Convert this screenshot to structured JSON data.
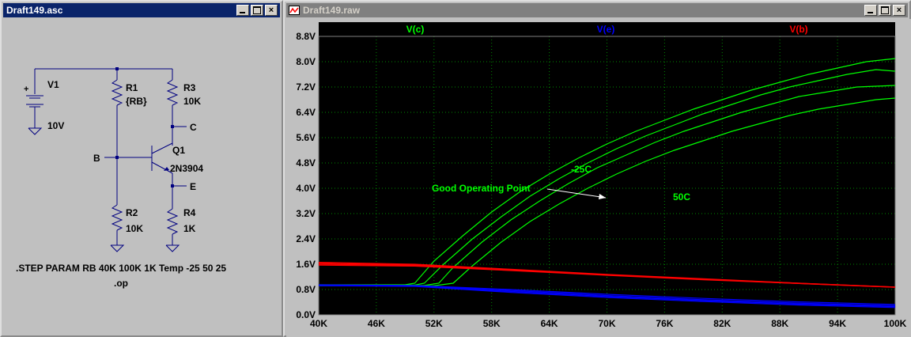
{
  "schematic_window": {
    "title": "Draft149.asc",
    "components": {
      "v1": {
        "name": "V1",
        "value": "10V"
      },
      "r1": {
        "name": "R1",
        "value": "{RB}"
      },
      "r3": {
        "name": "R3",
        "value": "10K"
      },
      "r2": {
        "name": "R2",
        "value": "10K"
      },
      "r4": {
        "name": "R4",
        "value": "1K"
      },
      "q1": {
        "name": "Q1",
        "value": "2N3904"
      },
      "plus_sign": "+"
    },
    "net_labels": {
      "b": "B",
      "c": "C",
      "e": "E"
    },
    "directives": {
      "step": ".STEP PARAM RB 40K 100K 1K Temp -25 50 25",
      "op": ".op"
    }
  },
  "waveform_window": {
    "title": "Draft149.raw"
  },
  "colors": {
    "vc": "#00ff00",
    "ve": "#0000ff",
    "vb": "#ff0000",
    "grid": "#008800",
    "axis_text": "#000000",
    "plot_bg": "#000000"
  },
  "chart_data": {
    "type": "line",
    "x_unit": "K",
    "xlim": [
      40,
      100
    ],
    "ylim": [
      0,
      8.8
    ],
    "x_ticks": [
      "40K",
      "46K",
      "52K",
      "58K",
      "64K",
      "70K",
      "76K",
      "82K",
      "88K",
      "94K",
      "100K"
    ],
    "y_ticks": [
      "0.0V",
      "0.8V",
      "1.6V",
      "2.4V",
      "3.2V",
      "4.0V",
      "4.8V",
      "5.6V",
      "6.4V",
      "7.2V",
      "8.0V",
      "8.8V"
    ],
    "grid": true,
    "legend_entries": [
      "V(c)",
      "V(e)",
      "V(b)"
    ],
    "annotations": {
      "cold": "-25C",
      "hot": "50C",
      "note": "Good Operating Point"
    },
    "series": [
      {
        "name": "V(c)",
        "color": "#00ff00",
        "x": [
          40,
          45,
          49,
          50,
          52,
          55,
          58,
          61,
          64,
          67,
          70,
          73,
          76,
          79,
          82,
          85,
          88,
          91,
          94,
          97,
          100
        ],
        "values": [
          0.95,
          0.95,
          0.95,
          1.0,
          1.7,
          2.5,
          3.25,
          3.9,
          4.45,
          4.95,
          5.4,
          5.8,
          6.15,
          6.5,
          6.8,
          7.1,
          7.35,
          7.6,
          7.8,
          8.0,
          8.1
        ]
      },
      {
        "name": "V(c)",
        "color": "#00ff00",
        "x": [
          40,
          45,
          50,
          51,
          53,
          56,
          59,
          62,
          65,
          68,
          71,
          74,
          77,
          80,
          83,
          86,
          89,
          92,
          95,
          98,
          100
        ],
        "values": [
          0.94,
          0.94,
          0.94,
          1.0,
          1.6,
          2.4,
          3.1,
          3.75,
          4.3,
          4.8,
          5.25,
          5.65,
          6.0,
          6.35,
          6.65,
          6.95,
          7.2,
          7.4,
          7.6,
          7.75,
          7.7
        ]
      },
      {
        "name": "V(c)",
        "color": "#00ff00",
        "x": [
          40,
          45,
          51,
          52.5,
          54,
          57,
          60,
          63,
          66,
          69,
          72,
          75,
          78,
          81,
          84,
          87,
          90,
          93,
          96,
          100
        ],
        "values": [
          0.93,
          0.93,
          0.93,
          1.0,
          1.5,
          2.3,
          3.0,
          3.6,
          4.15,
          4.65,
          5.05,
          5.45,
          5.8,
          6.1,
          6.4,
          6.65,
          6.9,
          7.05,
          7.2,
          7.25
        ]
      },
      {
        "name": "V(c)",
        "color": "#00ff00",
        "x": [
          40,
          45,
          52,
          54,
          56,
          59,
          62,
          65,
          68,
          71,
          74,
          77,
          80,
          83,
          86,
          89,
          92,
          95,
          98,
          100
        ],
        "values": [
          0.92,
          0.92,
          0.92,
          1.0,
          1.55,
          2.3,
          2.95,
          3.5,
          4.0,
          4.45,
          4.85,
          5.2,
          5.5,
          5.8,
          6.05,
          6.3,
          6.5,
          6.65,
          6.8,
          6.85
        ]
      },
      {
        "name": "V(e)",
        "color": "#0000ff",
        "x": [
          40,
          50,
          60,
          70,
          80,
          90,
          100
        ],
        "values": [
          0.95,
          0.93,
          0.8,
          0.65,
          0.52,
          0.41,
          0.33
        ]
      },
      {
        "name": "V(e)",
        "color": "#0000ff",
        "x": [
          40,
          50,
          60,
          70,
          80,
          90,
          100
        ],
        "values": [
          0.94,
          0.92,
          0.77,
          0.61,
          0.48,
          0.37,
          0.29
        ]
      },
      {
        "name": "V(e)",
        "color": "#0000ff",
        "x": [
          40,
          50,
          60,
          70,
          80,
          90,
          100
        ],
        "values": [
          0.93,
          0.91,
          0.74,
          0.58,
          0.45,
          0.34,
          0.26
        ]
      },
      {
        "name": "V(e)",
        "color": "#0000ff",
        "x": [
          40,
          50,
          60,
          70,
          80,
          90,
          100
        ],
        "values": [
          0.92,
          0.9,
          0.71,
          0.55,
          0.42,
          0.31,
          0.23
        ]
      },
      {
        "name": "V(b)",
        "color": "#ff0000",
        "x": [
          40,
          50,
          60,
          70,
          80,
          90,
          100
        ],
        "values": [
          1.66,
          1.6,
          1.44,
          1.28,
          1.14,
          1.0,
          0.88
        ]
      },
      {
        "name": "V(b)",
        "color": "#ff0000",
        "x": [
          40,
          50,
          60,
          70,
          80,
          90,
          100
        ],
        "values": [
          1.63,
          1.58,
          1.42,
          1.27,
          1.13,
          1.0,
          0.88
        ]
      },
      {
        "name": "V(b)",
        "color": "#ff0000",
        "x": [
          40,
          50,
          60,
          70,
          80,
          90,
          100
        ],
        "values": [
          1.6,
          1.56,
          1.41,
          1.26,
          1.12,
          0.99,
          0.87
        ]
      },
      {
        "name": "V(b)",
        "color": "#ff0000",
        "x": [
          40,
          50,
          60,
          70,
          80,
          90,
          100
        ],
        "values": [
          1.57,
          1.54,
          1.4,
          1.25,
          1.11,
          0.99,
          0.87
        ]
      }
    ]
  }
}
